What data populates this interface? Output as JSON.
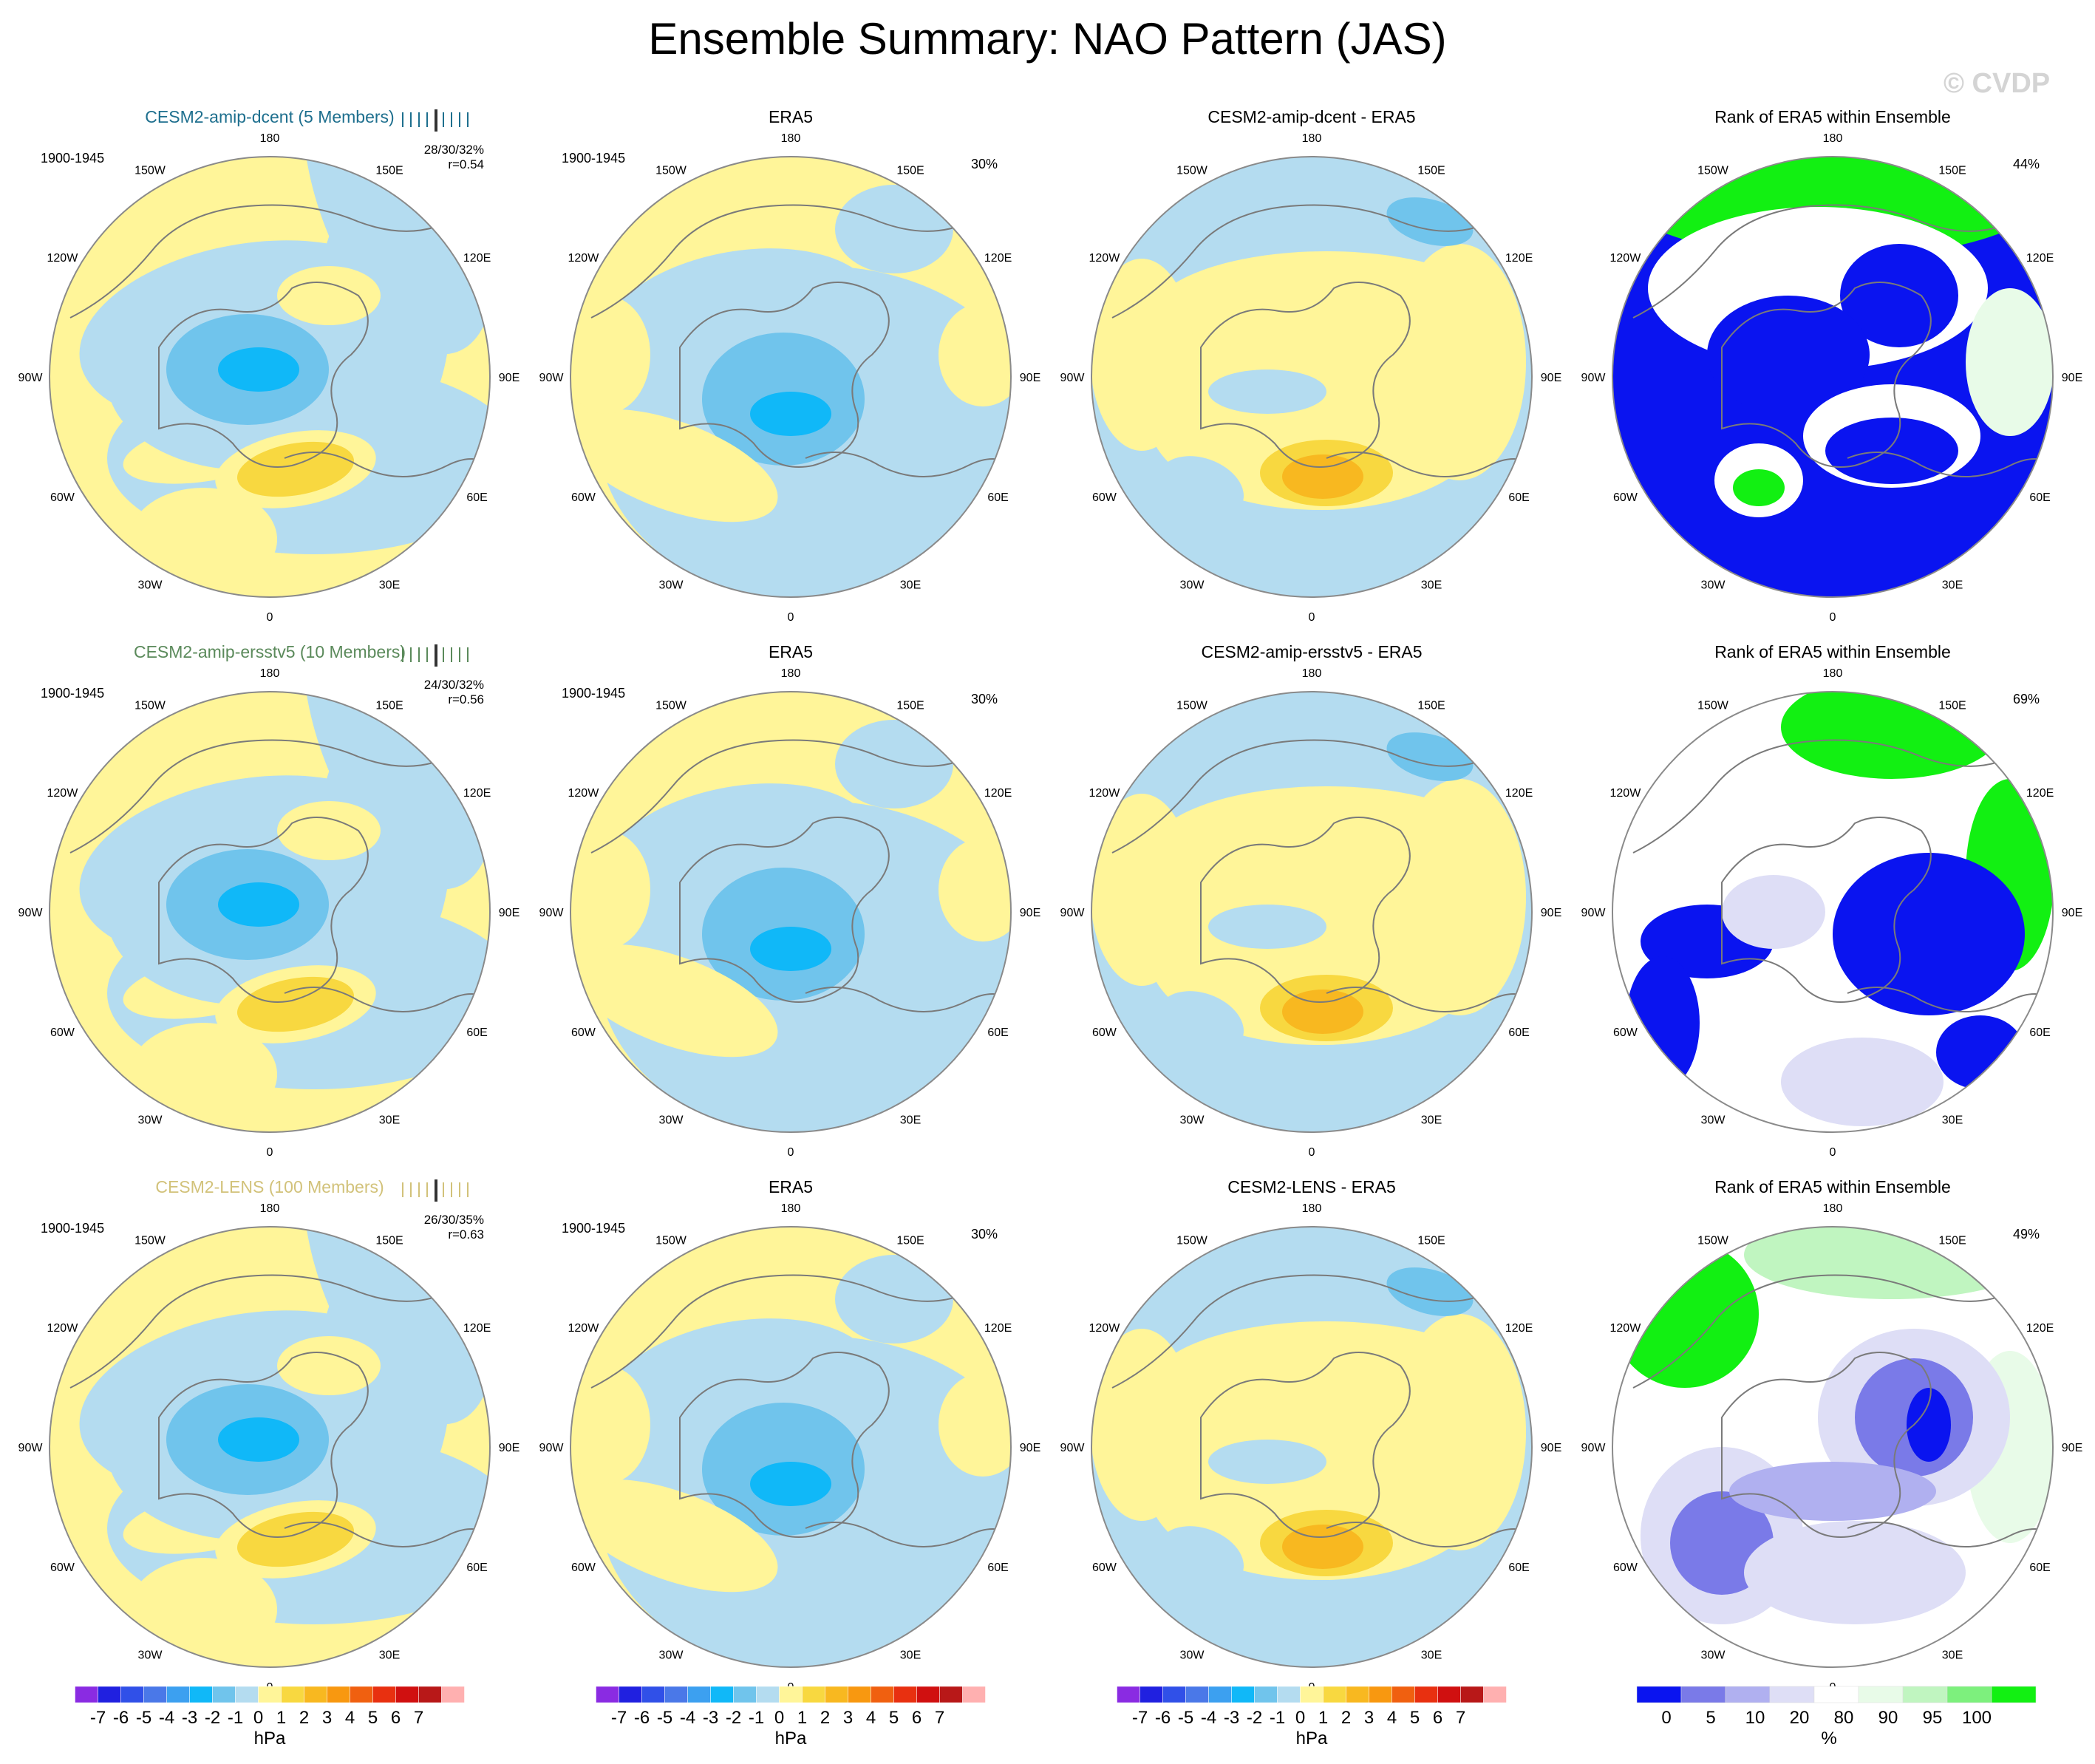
{
  "title": "Ensemble Summary: NAO Pattern (JAS)",
  "watermark": "© CVDP",
  "lon_labels": [
    "180",
    "150E",
    "120E",
    "90E",
    "60E",
    "30E",
    "0",
    "30W",
    "60W",
    "90W",
    "120W",
    "150W"
  ],
  "rows": [
    {
      "model": {
        "title": "CESM2-amip-dcent (5 Members)",
        "color": "#1e6f8e",
        "period": "1900-1945",
        "stats": "28/30/32%",
        "r": "r=0.54",
        "pattern": "model"
      },
      "obs": {
        "title": "ERA5",
        "period": "1900-1945",
        "pct": "30%",
        "pattern": "obs"
      },
      "diff": {
        "title": "CESM2-amip-dcent - ERA5",
        "pattern": "diff"
      },
      "rank": {
        "title": "Rank of ERA5 within Ensemble",
        "pct": "44%",
        "pattern": "rank1"
      }
    },
    {
      "model": {
        "title": "CESM2-amip-ersstv5 (10 Members)",
        "color": "#5b8a5b",
        "period": "1900-1945",
        "stats": "24/30/32%",
        "r": "r=0.56",
        "pattern": "model"
      },
      "obs": {
        "title": "ERA5",
        "period": "1900-1945",
        "pct": "30%",
        "pattern": "obs"
      },
      "diff": {
        "title": "CESM2-amip-ersstv5 - ERA5",
        "pattern": "diff"
      },
      "rank": {
        "title": "Rank of ERA5 within Ensemble",
        "pct": "69%",
        "pattern": "rank2"
      }
    },
    {
      "model": {
        "title": "CESM2-LENS (100 Members)",
        "color": "#d2c27a",
        "period": "1900-1945",
        "stats": "26/30/35%",
        "r": "r=0.63",
        "pattern": "model"
      },
      "obs": {
        "title": "ERA5",
        "period": "1900-1945",
        "pct": "30%",
        "pattern": "obs"
      },
      "diff": {
        "title": "CESM2-LENS - ERA5",
        "pattern": "diff"
      },
      "rank": {
        "title": "Rank of ERA5 within Ensemble",
        "pct": "49%",
        "pattern": "rank3"
      }
    }
  ],
  "hpa_colorbar": {
    "colors": [
      "#8a2be2",
      "#2020e0",
      "#3050e8",
      "#4a78e8",
      "#3ca0f0",
      "#10b8f8",
      "#70c4ec",
      "#b4dcf0",
      "#fff599",
      "#f8d840",
      "#f8b820",
      "#f89810",
      "#f06010",
      "#e83010",
      "#d01010",
      "#b81818",
      "#ffb0b0"
    ],
    "labels": [
      "-7",
      "-6",
      "-5",
      "-4",
      "-3",
      "-2",
      "-1",
      "0",
      "1",
      "2",
      "3",
      "4",
      "5",
      "6",
      "7"
    ],
    "unit": "hPa"
  },
  "rank_colorbar": {
    "colors": [
      "#0a14f0",
      "#7a7ae8",
      "#b0b0f0",
      "#dedef6",
      "#ffffff",
      "#e8fbe8",
      "#c0f5c0",
      "#7df07d",
      "#12f012"
    ],
    "labels": [
      "0",
      "5",
      "10",
      "20",
      "80",
      "90",
      "95",
      "100"
    ],
    "unit": "%"
  },
  "chart_data": {
    "type": "polar stereographic map panels",
    "title": "Ensemble Summary: NAO Pattern (JAS)",
    "units": "hPa",
    "contour_levels": [
      -7,
      -6,
      -5,
      -4,
      -3,
      -2,
      -1,
      0,
      1,
      2,
      3,
      4,
      5,
      6,
      7
    ],
    "rank_levels": [
      0,
      5,
      10,
      20,
      80,
      90,
      95,
      100
    ],
    "panels": [
      {
        "row": 1,
        "col": "model",
        "title": "CESM2-amip-dcent (5 Members)",
        "period": "1900-1945",
        "explained_variance": "28/30/32%",
        "pattern_correlation": 0.54
      },
      {
        "row": 1,
        "col": "obs",
        "title": "ERA5",
        "period": "1900-1945",
        "explained_variance_pct": 30
      },
      {
        "row": 1,
        "col": "diff",
        "title": "CESM2-amip-dcent - ERA5"
      },
      {
        "row": 1,
        "col": "rank",
        "title": "Rank of ERA5 within Ensemble",
        "pct": 44
      },
      {
        "row": 2,
        "col": "model",
        "title": "CESM2-amip-ersstv5 (10 Members)",
        "period": "1900-1945",
        "explained_variance": "24/30/32%",
        "pattern_correlation": 0.56
      },
      {
        "row": 2,
        "col": "obs",
        "title": "ERA5",
        "period": "1900-1945",
        "explained_variance_pct": 30
      },
      {
        "row": 2,
        "col": "diff",
        "title": "CESM2-amip-ersstv5 - ERA5"
      },
      {
        "row": 2,
        "col": "rank",
        "title": "Rank of ERA5 within Ensemble",
        "pct": 69
      },
      {
        "row": 3,
        "col": "model",
        "title": "CESM2-LENS (100 Members)",
        "period": "1900-1945",
        "explained_variance": "26/30/35%",
        "pattern_correlation": 0.63
      },
      {
        "row": 3,
        "col": "obs",
        "title": "ERA5",
        "period": "1900-1945",
        "explained_variance_pct": 30
      },
      {
        "row": 3,
        "col": "diff",
        "title": "CESM2-LENS - ERA5"
      },
      {
        "row": 3,
        "col": "rank",
        "title": "Rank of ERA5 within Ensemble",
        "pct": 49
      }
    ]
  }
}
